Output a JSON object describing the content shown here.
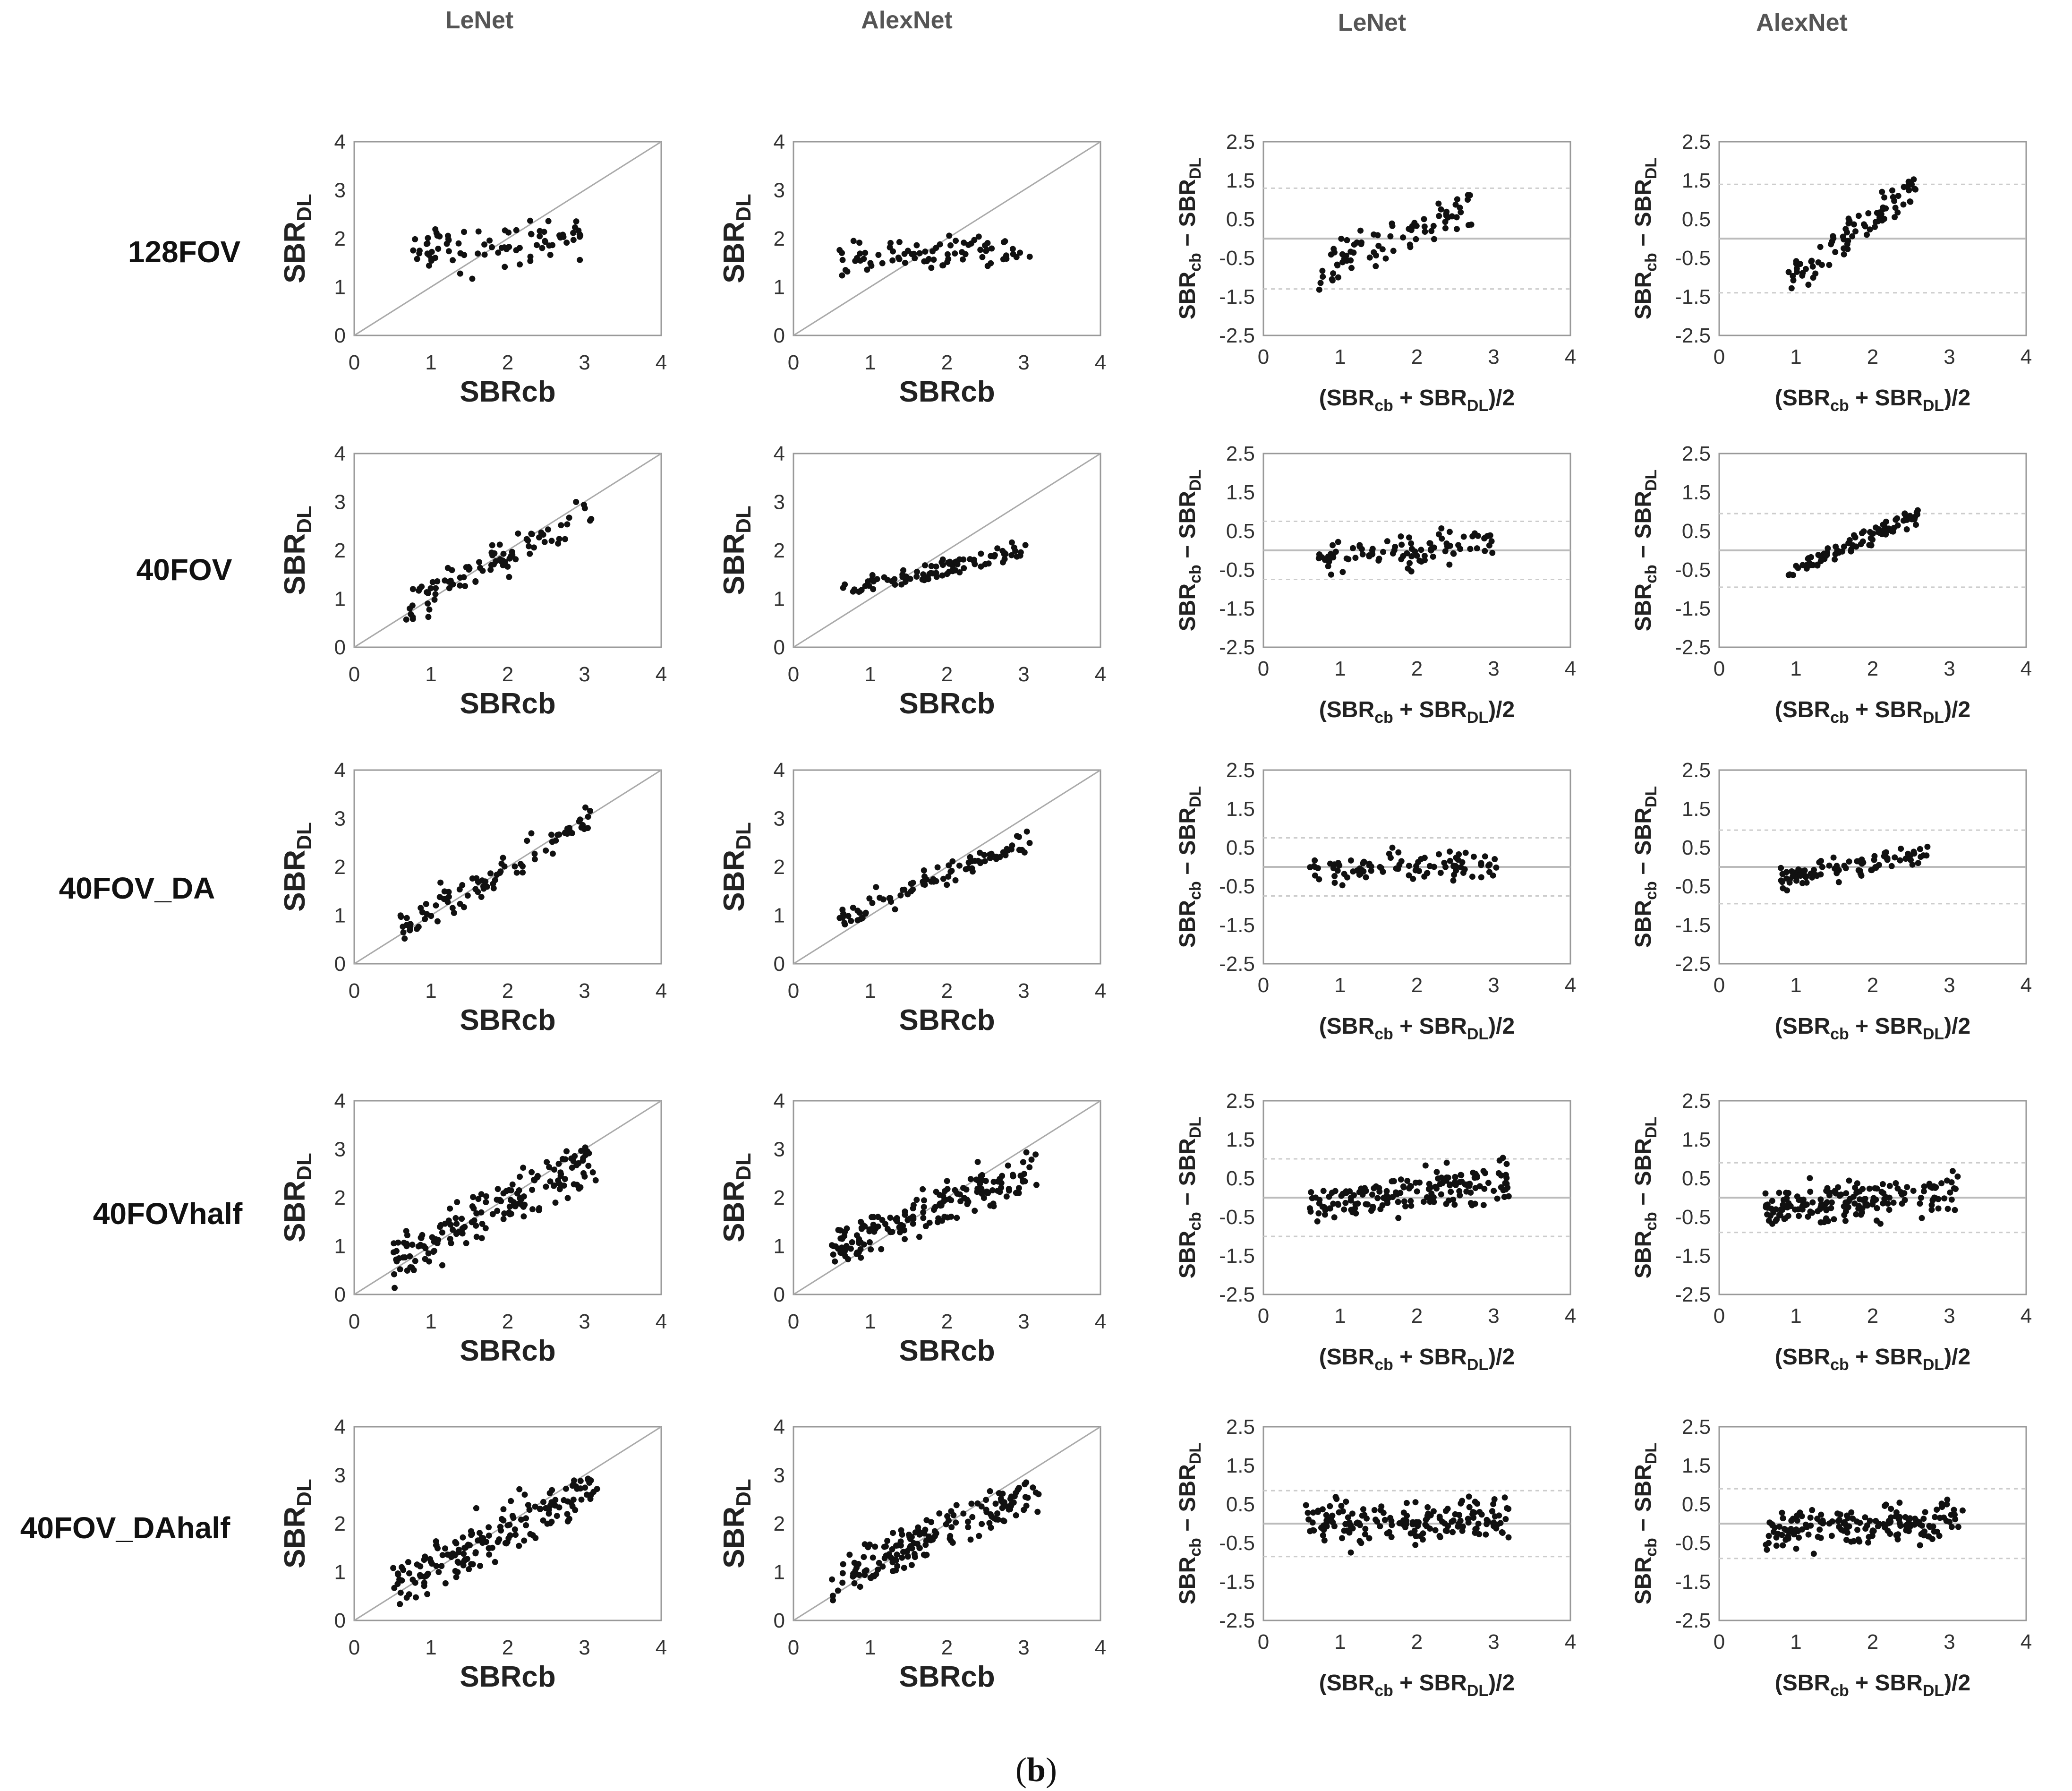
{
  "chart_data": {
    "type": "scatter",
    "column_headers": [
      "LeNet",
      "AlexNet",
      "LeNet",
      "AlexNet"
    ],
    "row_labels": [
      "128FOV",
      "40FOV",
      "40FOV_DA",
      "40FOVhalf",
      "40FOV_DAhalf"
    ],
    "caption": {
      "open": "(",
      "letter": "b",
      "close": ")"
    },
    "scatter_axes": {
      "xlabel": "SBRcb",
      "ylabel_main": "SBR",
      "ylabel_sub": "DL",
      "xlim": [
        0,
        4
      ],
      "ylim": [
        0,
        4
      ],
      "xticks": [
        "0",
        "1",
        "2",
        "3",
        "4"
      ],
      "yticks": [
        "0",
        "1",
        "2",
        "3",
        "4"
      ],
      "identity_line": true
    },
    "bland_altman_axes": {
      "xlabel_parts": [
        "(SBR",
        "cb",
        " + SBR",
        "DL",
        ")/2"
      ],
      "ylabel_parts": [
        "SBR",
        "cb",
        " − SBR",
        "DL"
      ],
      "xlim": [
        0,
        4
      ],
      "ylim": [
        -2.5,
        2.5
      ],
      "xticks": [
        "0",
        "1",
        "2",
        "3",
        "4"
      ],
      "yticks": [
        "2.5",
        "1.5",
        "0.5",
        "-0.5",
        "-1.5",
        "-2.5"
      ]
    },
    "panels": [
      {
        "row": "128FOV",
        "model": "LeNet",
        "kind": "scatter",
        "n": 80,
        "x_range": [
          0.6,
          3.1
        ],
        "slope": 0.15,
        "intercept": 1.6,
        "noise": 0.35
      },
      {
        "row": "128FOV",
        "model": "AlexNet",
        "kind": "scatter",
        "n": 80,
        "x_range": [
          0.6,
          3.1
        ],
        "slope": 0.05,
        "intercept": 1.6,
        "noise": 0.25
      },
      {
        "row": "128FOV",
        "model": "LeNet",
        "kind": "bland_altman",
        "n": 80,
        "x_range": [
          0.7,
          2.8
        ],
        "slope": 0.8,
        "intercept": -1.4,
        "noise": 0.45,
        "mean_line": 0.0,
        "upper_loa": 1.3,
        "lower_loa": -1.3
      },
      {
        "row": "128FOV",
        "model": "AlexNet",
        "kind": "bland_altman",
        "n": 80,
        "x_range": [
          0.9,
          2.6
        ],
        "slope": 1.4,
        "intercept": -2.3,
        "noise": 0.3,
        "mean_line": 0.0,
        "upper_loa": 1.4,
        "lower_loa": -1.4
      },
      {
        "row": "40FOV",
        "model": "LeNet",
        "kind": "scatter",
        "n": 90,
        "x_range": [
          0.6,
          3.1
        ],
        "slope": 0.8,
        "intercept": 0.35,
        "noise": 0.3
      },
      {
        "row": "40FOV",
        "model": "AlexNet",
        "kind": "scatter",
        "n": 90,
        "x_range": [
          0.6,
          3.1
        ],
        "slope": 0.35,
        "intercept": 0.95,
        "noise": 0.15
      },
      {
        "row": "40FOV",
        "model": "LeNet",
        "kind": "bland_altman",
        "n": 90,
        "x_range": [
          0.7,
          3.0
        ],
        "slope": 0.15,
        "intercept": -0.3,
        "noise": 0.35,
        "mean_line": 0.0,
        "upper_loa": 0.75,
        "lower_loa": -0.75
      },
      {
        "row": "40FOV",
        "model": "AlexNet",
        "kind": "bland_altman",
        "n": 90,
        "x_range": [
          0.9,
          2.6
        ],
        "slope": 0.9,
        "intercept": -1.4,
        "noise": 0.15,
        "mean_line": 0.0,
        "upper_loa": 0.95,
        "lower_loa": -0.95
      },
      {
        "row": "40FOV_DA",
        "model": "LeNet",
        "kind": "scatter",
        "n": 90,
        "x_range": [
          0.6,
          3.1
        ],
        "slope": 0.9,
        "intercept": 0.2,
        "noise": 0.3
      },
      {
        "row": "40FOV_DA",
        "model": "AlexNet",
        "kind": "scatter",
        "n": 90,
        "x_range": [
          0.6,
          3.1
        ],
        "slope": 0.65,
        "intercept": 0.55,
        "noise": 0.2
      },
      {
        "row": "40FOV_DA",
        "model": "LeNet",
        "kind": "bland_altman",
        "n": 90,
        "x_range": [
          0.6,
          3.1
        ],
        "slope": 0.05,
        "intercept": -0.1,
        "noise": 0.3,
        "mean_line": 0.0,
        "upper_loa": 0.75,
        "lower_loa": -0.75
      },
      {
        "row": "40FOV_DA",
        "model": "AlexNet",
        "kind": "bland_altman",
        "n": 90,
        "x_range": [
          0.8,
          2.8
        ],
        "slope": 0.35,
        "intercept": -0.6,
        "noise": 0.2,
        "mean_line": 0.0,
        "upper_loa": 0.95,
        "lower_loa": -0.95
      },
      {
        "row": "40FOVhalf",
        "model": "LeNet",
        "kind": "scatter",
        "n": 170,
        "x_range": [
          0.5,
          3.2
        ],
        "slope": 0.75,
        "intercept": 0.4,
        "noise": 0.4
      },
      {
        "row": "40FOVhalf",
        "model": "AlexNet",
        "kind": "scatter",
        "n": 170,
        "x_range": [
          0.5,
          3.2
        ],
        "slope": 0.65,
        "intercept": 0.55,
        "noise": 0.35
      },
      {
        "row": "40FOVhalf",
        "model": "LeNet",
        "kind": "bland_altman",
        "n": 170,
        "x_range": [
          0.6,
          3.2
        ],
        "slope": 0.25,
        "intercept": -0.35,
        "noise": 0.4,
        "mean_line": 0.0,
        "upper_loa": 1.0,
        "lower_loa": -1.0
      },
      {
        "row": "40FOVhalf",
        "model": "AlexNet",
        "kind": "bland_altman",
        "n": 170,
        "x_range": [
          0.6,
          3.2
        ],
        "slope": 0.15,
        "intercept": -0.35,
        "noise": 0.4,
        "mean_line": 0.0,
        "upper_loa": 0.9,
        "lower_loa": -0.9
      },
      {
        "row": "40FOV_DAhalf",
        "model": "LeNet",
        "kind": "scatter",
        "n": 170,
        "x_range": [
          0.5,
          3.2
        ],
        "slope": 0.75,
        "intercept": 0.35,
        "noise": 0.4
      },
      {
        "row": "40FOV_DAhalf",
        "model": "AlexNet",
        "kind": "scatter",
        "n": 170,
        "x_range": [
          0.5,
          3.2
        ],
        "slope": 0.7,
        "intercept": 0.45,
        "noise": 0.4
      },
      {
        "row": "40FOV_DAhalf",
        "model": "LeNet",
        "kind": "bland_altman",
        "n": 170,
        "x_range": [
          0.5,
          3.2
        ],
        "slope": 0.05,
        "intercept": -0.05,
        "noise": 0.4,
        "mean_line": 0.0,
        "upper_loa": 0.85,
        "lower_loa": -0.85
      },
      {
        "row": "40FOV_DAhalf",
        "model": "AlexNet",
        "kind": "bland_altman",
        "n": 170,
        "x_range": [
          0.6,
          3.2
        ],
        "slope": 0.1,
        "intercept": -0.25,
        "noise": 0.4,
        "mean_line": 0.0,
        "upper_loa": 0.9,
        "lower_loa": -0.9
      }
    ]
  }
}
